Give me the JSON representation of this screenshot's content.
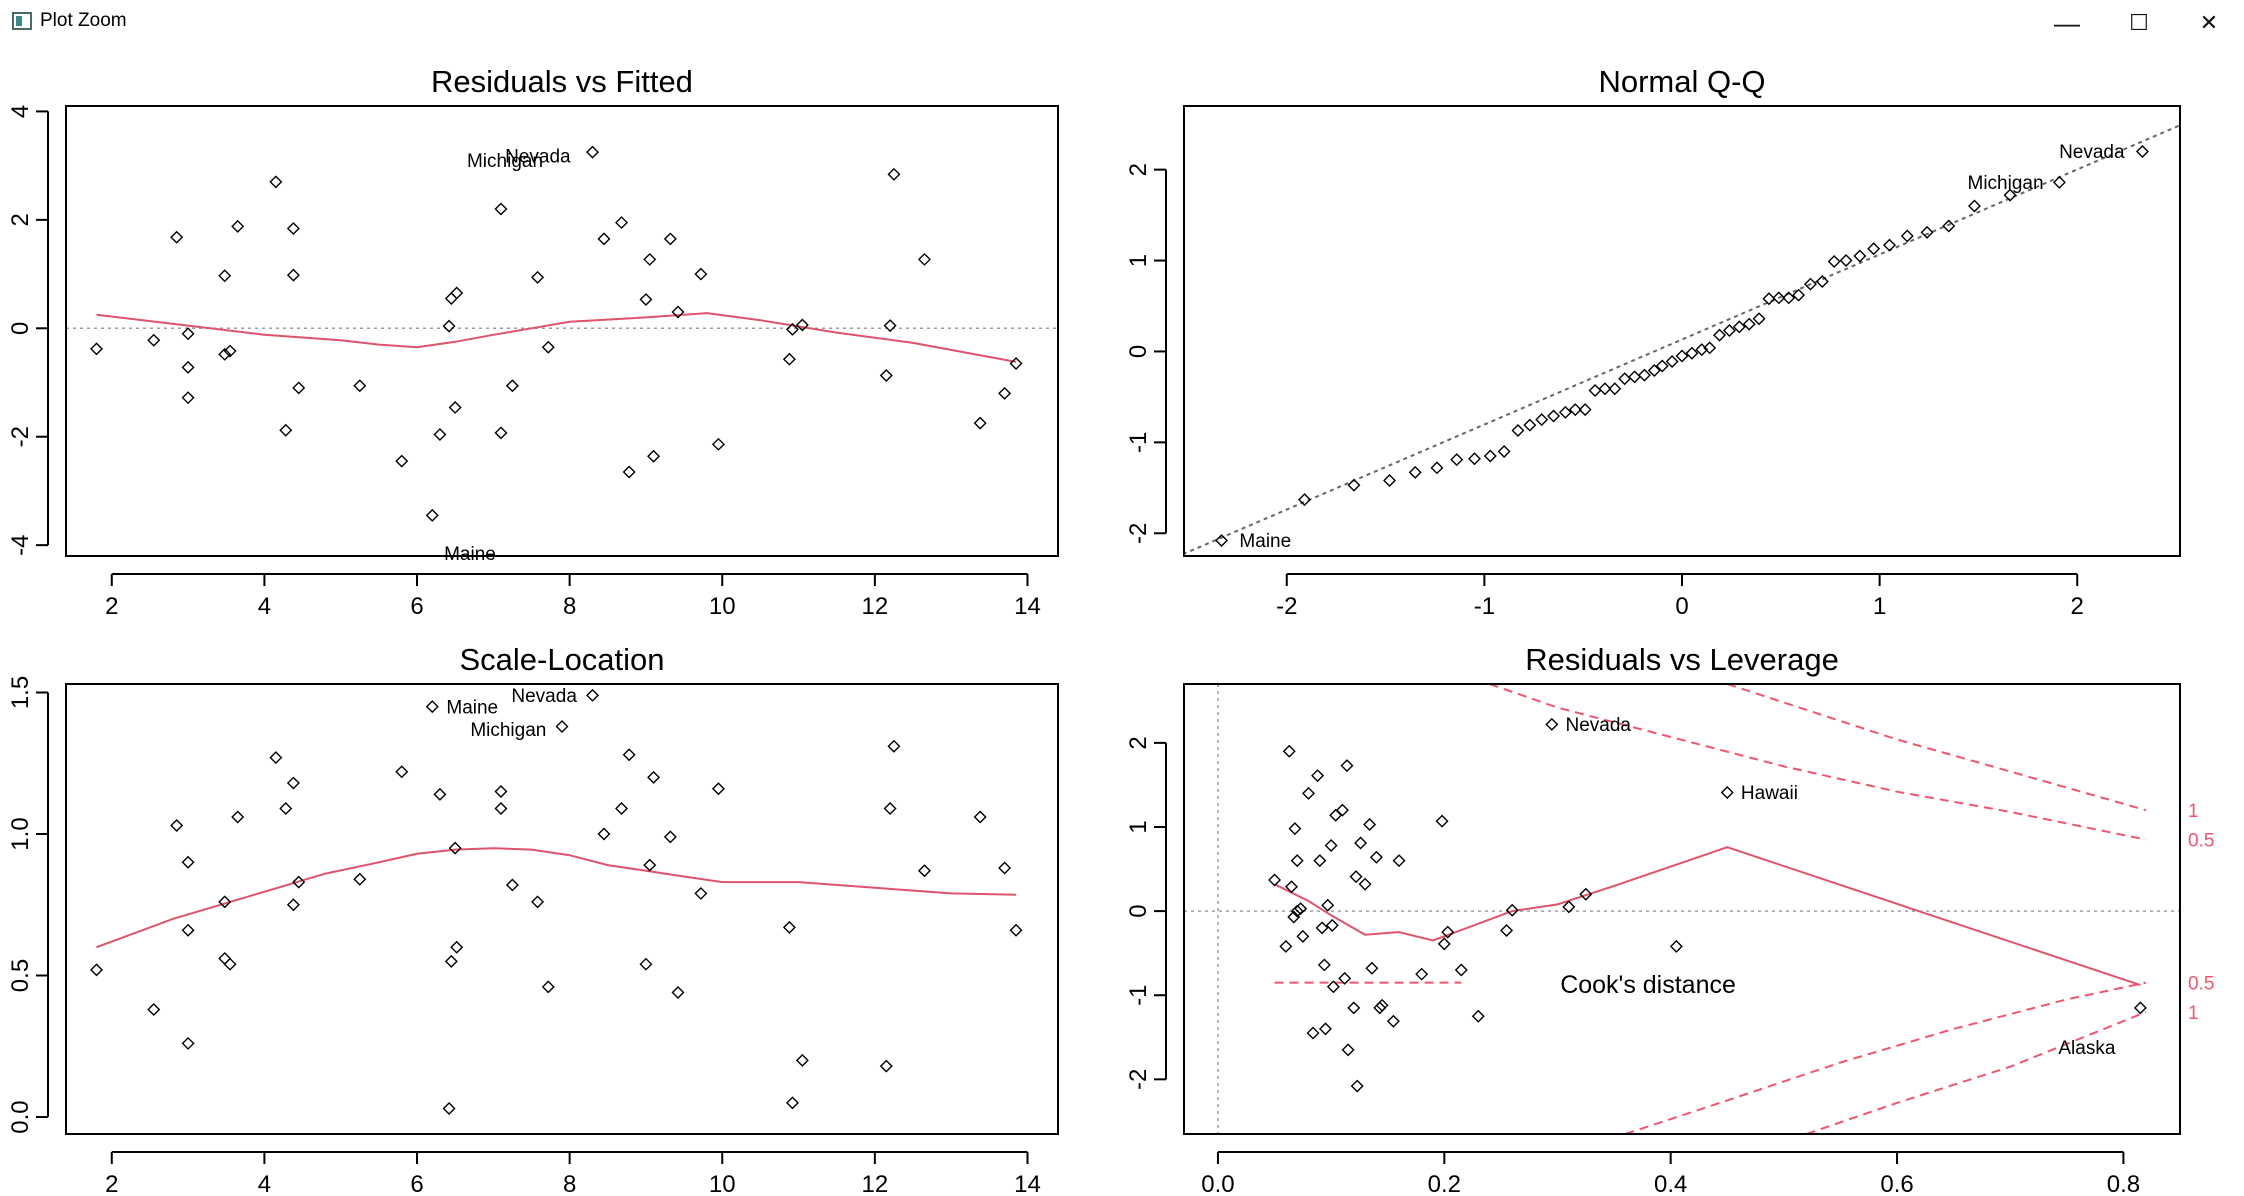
{
  "window": {
    "title": "Plot Zoom",
    "minimize_glyph": "—",
    "maximize_glyph": "☐",
    "close_glyph": "✕"
  },
  "colors": {
    "smoother": "#DF536B",
    "cook": "#F2556F",
    "ref": "#9E9E9E"
  },
  "chart_data": [
    {
      "type": "scatter",
      "title": "Residuals vs Fitted",
      "xlim": [
        1.4,
        14.4
      ],
      "ylim": [
        -4.2,
        4.1
      ],
      "xticks": [
        2,
        4,
        6,
        8,
        10,
        12,
        14
      ],
      "yticks": [
        -4,
        -2,
        0,
        2,
        4
      ],
      "ref_lines": {
        "h": [
          0
        ]
      },
      "points": [
        [
          1.8,
          -0.38
        ],
        [
          2.55,
          -0.22
        ],
        [
          2.85,
          1.68
        ],
        [
          3.0,
          -0.1
        ],
        [
          3.0,
          -0.72
        ],
        [
          3.0,
          -1.28
        ],
        [
          3.48,
          0.97
        ],
        [
          3.48,
          -0.48
        ],
        [
          3.55,
          -0.42
        ],
        [
          3.65,
          1.88
        ],
        [
          4.15,
          2.7
        ],
        [
          4.28,
          -1.88
        ],
        [
          4.38,
          1.84
        ],
        [
          4.38,
          0.98
        ],
        [
          4.45,
          -1.1
        ],
        [
          5.25,
          -1.06
        ],
        [
          5.8,
          -2.45
        ],
        [
          6.2,
          -3.45
        ],
        [
          6.3,
          -1.96
        ],
        [
          6.42,
          0.04
        ],
        [
          6.45,
          0.55
        ],
        [
          6.5,
          -1.46
        ],
        [
          6.52,
          0.65
        ],
        [
          7.1,
          2.2
        ],
        [
          7.1,
          -1.93
        ],
        [
          7.25,
          -1.06
        ],
        [
          7.58,
          0.94
        ],
        [
          7.72,
          -0.35
        ],
        [
          8.45,
          1.65
        ],
        [
          8.68,
          1.95
        ],
        [
          8.78,
          -2.65
        ],
        [
          9.0,
          0.53
        ],
        [
          9.05,
          1.27
        ],
        [
          9.1,
          -2.36
        ],
        [
          9.32,
          1.65
        ],
        [
          9.42,
          0.3
        ],
        [
          9.72,
          1.0
        ],
        [
          9.95,
          -2.14
        ],
        [
          10.88,
          -0.57
        ],
        [
          10.92,
          -0.02
        ],
        [
          11.05,
          0.06
        ],
        [
          12.15,
          -0.87
        ],
        [
          12.2,
          0.05
        ],
        [
          12.25,
          2.84
        ],
        [
          12.65,
          1.27
        ],
        [
          13.38,
          -1.75
        ],
        [
          13.7,
          -1.2
        ],
        [
          13.85,
          -0.65
        ],
        [
          8.3,
          3.25
        ]
      ],
      "smoother": [
        [
          1.8,
          0.25
        ],
        [
          3.0,
          0.05
        ],
        [
          4.0,
          -0.12
        ],
        [
          5.0,
          -0.22
        ],
        [
          5.5,
          -0.3
        ],
        [
          6.0,
          -0.35
        ],
        [
          6.5,
          -0.25
        ],
        [
          7.0,
          -0.12
        ],
        [
          7.5,
          0.0
        ],
        [
          8.0,
          0.12
        ],
        [
          9.0,
          0.2
        ],
        [
          9.8,
          0.28
        ],
        [
          10.5,
          0.15
        ],
        [
          11.5,
          -0.08
        ],
        [
          12.5,
          -0.27
        ],
        [
          13.85,
          -0.62
        ]
      ],
      "labels": [
        {
          "text": "Michigan",
          "x": 6.55,
          "y": 3.1,
          "anchor": "start"
        },
        {
          "text": "Nevada",
          "x": 7.05,
          "y": 3.18,
          "anchor": "start"
        },
        {
          "text": "Maine",
          "x": 6.25,
          "y": -4.15,
          "anchor": "start"
        }
      ]
    },
    {
      "type": "scatter",
      "title": "Normal Q-Q",
      "xlim": [
        -2.52,
        2.52
      ],
      "ylim": [
        -2.25,
        2.7
      ],
      "xticks": [
        -2,
        -1,
        0,
        1,
        2
      ],
      "yticks": [
        -2,
        -1,
        0,
        1,
        2
      ],
      "ref_lines": {
        "qq": [
          [
            -2.6,
            -2.3
          ],
          [
            2.8,
            2.75
          ]
        ]
      },
      "points": [
        [
          -2.33,
          -2.08
        ],
        [
          -1.91,
          -1.63
        ],
        [
          -1.66,
          -1.47
        ],
        [
          -1.48,
          -1.42
        ],
        [
          -1.35,
          -1.33
        ],
        [
          -1.24,
          -1.28
        ],
        [
          -1.14,
          -1.19
        ],
        [
          -1.05,
          -1.18
        ],
        [
          -0.97,
          -1.15
        ],
        [
          -0.9,
          -1.1
        ],
        [
          -0.83,
          -0.87
        ],
        [
          -0.77,
          -0.81
        ],
        [
          -0.71,
          -0.75
        ],
        [
          -0.65,
          -0.71
        ],
        [
          -0.59,
          -0.67
        ],
        [
          -0.54,
          -0.64
        ],
        [
          -0.49,
          -0.64
        ],
        [
          -0.44,
          -0.43
        ],
        [
          -0.39,
          -0.41
        ],
        [
          -0.34,
          -0.41
        ],
        [
          -0.29,
          -0.3
        ],
        [
          -0.24,
          -0.28
        ],
        [
          -0.19,
          -0.26
        ],
        [
          -0.14,
          -0.21
        ],
        [
          -0.1,
          -0.16
        ],
        [
          -0.05,
          -0.11
        ],
        [
          0.0,
          -0.05
        ],
        [
          0.05,
          -0.02
        ],
        [
          0.1,
          0.02
        ],
        [
          0.14,
          0.04
        ],
        [
          0.19,
          0.18
        ],
        [
          0.24,
          0.23
        ],
        [
          0.29,
          0.27
        ],
        [
          0.34,
          0.3
        ],
        [
          0.39,
          0.36
        ],
        [
          0.44,
          0.58
        ],
        [
          0.49,
          0.59
        ],
        [
          0.54,
          0.59
        ],
        [
          0.59,
          0.62
        ],
        [
          0.65,
          0.74
        ],
        [
          0.71,
          0.77
        ],
        [
          0.77,
          0.99
        ],
        [
          0.83,
          1.0
        ],
        [
          0.9,
          1.05
        ],
        [
          0.97,
          1.13
        ],
        [
          1.05,
          1.17
        ],
        [
          1.14,
          1.27
        ],
        [
          1.24,
          1.31
        ],
        [
          1.35,
          1.38
        ],
        [
          1.48,
          1.6
        ],
        [
          1.66,
          1.72
        ],
        [
          1.91,
          1.86
        ],
        [
          2.33,
          2.2
        ]
      ],
      "labels": [
        {
          "text": "Nevada",
          "x": 2.28,
          "y": 2.2,
          "anchor": "end"
        },
        {
          "text": "Michigan",
          "x": 1.87,
          "y": 1.86,
          "anchor": "end"
        },
        {
          "text": "Maine",
          "x": -2.28,
          "y": -2.08,
          "anchor": "start"
        }
      ]
    },
    {
      "type": "scatter",
      "title": "Scale-Location",
      "xlim": [
        1.4,
        14.4
      ],
      "ylim": [
        -0.06,
        1.53
      ],
      "xticks": [
        2,
        4,
        6,
        8,
        10,
        12,
        14
      ],
      "yticks": [
        0.0,
        0.5,
        1.0,
        1.5
      ],
      "ytick_labels": [
        "0.0",
        "0.5",
        "1.0",
        "1.5"
      ],
      "points": [
        [
          1.8,
          0.52
        ],
        [
          2.55,
          0.38
        ],
        [
          2.85,
          1.03
        ],
        [
          3.0,
          0.9
        ],
        [
          3.0,
          0.66
        ],
        [
          3.0,
          0.26
        ],
        [
          3.48,
          0.76
        ],
        [
          3.48,
          0.56
        ],
        [
          3.55,
          0.54
        ],
        [
          3.65,
          1.06
        ],
        [
          4.15,
          1.27
        ],
        [
          4.28,
          1.09
        ],
        [
          4.38,
          1.18
        ],
        [
          4.38,
          0.75
        ],
        [
          4.45,
          0.83
        ],
        [
          5.25,
          0.84
        ],
        [
          5.8,
          1.22
        ],
        [
          6.2,
          1.45
        ],
        [
          6.3,
          1.14
        ],
        [
          6.42,
          0.03
        ],
        [
          6.45,
          0.55
        ],
        [
          6.5,
          0.95
        ],
        [
          6.52,
          0.6
        ],
        [
          7.1,
          1.15
        ],
        [
          7.1,
          1.09
        ],
        [
          7.25,
          0.82
        ],
        [
          7.58,
          0.76
        ],
        [
          7.72,
          0.46
        ],
        [
          7.9,
          1.38
        ],
        [
          8.45,
          1.0
        ],
        [
          8.68,
          1.09
        ],
        [
          8.78,
          1.28
        ],
        [
          9.0,
          0.54
        ],
        [
          9.05,
          0.89
        ],
        [
          9.1,
          1.2
        ],
        [
          9.32,
          0.99
        ],
        [
          9.42,
          0.44
        ],
        [
          9.72,
          0.79
        ],
        [
          9.95,
          1.16
        ],
        [
          10.88,
          0.67
        ],
        [
          10.92,
          0.05
        ],
        [
          11.05,
          0.2
        ],
        [
          12.15,
          0.18
        ],
        [
          12.2,
          1.09
        ],
        [
          12.25,
          1.31
        ],
        [
          12.65,
          0.87
        ],
        [
          13.38,
          1.06
        ],
        [
          13.7,
          0.88
        ],
        [
          13.85,
          0.66
        ],
        [
          8.3,
          1.49
        ]
      ],
      "smoother": [
        [
          1.8,
          0.6
        ],
        [
          2.8,
          0.7
        ],
        [
          3.8,
          0.78
        ],
        [
          4.8,
          0.86
        ],
        [
          5.5,
          0.9
        ],
        [
          6.0,
          0.93
        ],
        [
          6.5,
          0.945
        ],
        [
          7.0,
          0.95
        ],
        [
          7.5,
          0.945
        ],
        [
          8.0,
          0.925
        ],
        [
          8.5,
          0.89
        ],
        [
          9.0,
          0.87
        ],
        [
          9.5,
          0.85
        ],
        [
          10.0,
          0.83
        ],
        [
          11.0,
          0.83
        ],
        [
          12.0,
          0.81
        ],
        [
          13.0,
          0.79
        ],
        [
          13.85,
          0.785
        ]
      ],
      "labels": [
        {
          "text": "Maine",
          "x": 6.28,
          "y": 1.45,
          "anchor": "start"
        },
        {
          "text": "Nevada",
          "x": 8.2,
          "y": 1.49,
          "anchor": "end"
        },
        {
          "text": "Michigan",
          "x": 7.8,
          "y": 1.37,
          "anchor": "end"
        }
      ]
    },
    {
      "type": "scatter",
      "title": "Residuals vs Leverage",
      "xlim": [
        -0.03,
        0.85
      ],
      "ylim": [
        -2.65,
        2.7
      ],
      "xticks": [
        0.0,
        0.2,
        0.4,
        0.6,
        0.8
      ],
      "xtick_labels": [
        "0.0",
        "0.2",
        "0.4",
        "0.6",
        "0.8"
      ],
      "yticks": [
        -2,
        -1,
        0,
        1,
        2
      ],
      "ref_lines": {
        "h": [
          0
        ],
        "v": [
          0
        ]
      },
      "points": [
        [
          0.05,
          0.37
        ],
        [
          0.06,
          -0.42
        ],
        [
          0.063,
          1.9
        ],
        [
          0.065,
          0.29
        ],
        [
          0.067,
          -0.07
        ],
        [
          0.068,
          0.98
        ],
        [
          0.07,
          0.0
        ],
        [
          0.07,
          0.6
        ],
        [
          0.073,
          0.03
        ],
        [
          0.075,
          -0.3
        ],
        [
          0.08,
          1.4
        ],
        [
          0.084,
          -1.45
        ],
        [
          0.088,
          1.61
        ],
        [
          0.09,
          0.6
        ],
        [
          0.092,
          -0.2
        ],
        [
          0.094,
          -0.64
        ],
        [
          0.095,
          -1.4
        ],
        [
          0.097,
          0.07
        ],
        [
          0.1,
          0.78
        ],
        [
          0.101,
          -0.17
        ],
        [
          0.102,
          -0.9
        ],
        [
          0.104,
          1.14
        ],
        [
          0.11,
          1.2
        ],
        [
          0.112,
          -0.8
        ],
        [
          0.114,
          1.73
        ],
        [
          0.115,
          -1.65
        ],
        [
          0.12,
          -1.15
        ],
        [
          0.122,
          0.41
        ],
        [
          0.123,
          -2.08
        ],
        [
          0.126,
          0.81
        ],
        [
          0.13,
          0.32
        ],
        [
          0.134,
          1.03
        ],
        [
          0.136,
          -0.68
        ],
        [
          0.14,
          0.64
        ],
        [
          0.143,
          -1.15
        ],
        [
          0.145,
          -1.12
        ],
        [
          0.155,
          -1.31
        ],
        [
          0.16,
          0.6
        ],
        [
          0.18,
          -0.75
        ],
        [
          0.198,
          1.07
        ],
        [
          0.2,
          -0.39
        ],
        [
          0.203,
          -0.25
        ],
        [
          0.215,
          -0.7
        ],
        [
          0.23,
          -1.25
        ],
        [
          0.255,
          -0.23
        ],
        [
          0.26,
          0.01
        ],
        [
          0.31,
          0.05
        ],
        [
          0.325,
          0.2
        ],
        [
          0.405,
          -0.42
        ],
        [
          0.295,
          2.22
        ],
        [
          0.45,
          1.41
        ],
        [
          0.815,
          -1.15
        ]
      ],
      "smoother": [
        [
          0.05,
          0.32
        ],
        [
          0.08,
          0.12
        ],
        [
          0.1,
          -0.05
        ],
        [
          0.13,
          -0.28
        ],
        [
          0.16,
          -0.25
        ],
        [
          0.19,
          -0.35
        ],
        [
          0.22,
          -0.2
        ],
        [
          0.26,
          0.0
        ],
        [
          0.3,
          0.08
        ],
        [
          0.35,
          0.3
        ],
        [
          0.45,
          0.76
        ],
        [
          0.815,
          -0.88
        ]
      ],
      "cooks_segment": [
        [
          0.05,
          -0.85
        ],
        [
          0.215,
          -0.85
        ]
      ],
      "cooks_curves": [
        {
          "level": 1,
          "label": "1",
          "upper": [
            [
              0.45,
              2.7
            ],
            [
              0.6,
              2.04
            ],
            [
              0.7,
              1.66
            ],
            [
              0.82,
              1.2
            ]
          ],
          "lower": [
            [
              0.52,
              -2.65
            ],
            [
              0.6,
              -2.28
            ],
            [
              0.7,
              -1.85
            ],
            [
              0.82,
              -1.2
            ]
          ]
        },
        {
          "level": 0.5,
          "label": "0.5",
          "upper": [
            [
              0.24,
              2.7
            ],
            [
              0.3,
              2.42
            ],
            [
              0.4,
              2.07
            ],
            [
              0.5,
              1.72
            ],
            [
              0.6,
              1.42
            ],
            [
              0.7,
              1.18
            ],
            [
              0.82,
              0.85
            ]
          ],
          "lower": [
            [
              0.36,
              -2.65
            ],
            [
              0.45,
              -2.25
            ],
            [
              0.55,
              -1.8
            ],
            [
              0.65,
              -1.4
            ],
            [
              0.75,
              -1.05
            ],
            [
              0.82,
              -0.85
            ]
          ]
        }
      ],
      "labels": [
        {
          "text": "Nevada",
          "x": 0.3,
          "y": 2.22,
          "anchor": "start"
        },
        {
          "text": "Hawaii",
          "x": 0.455,
          "y": 1.41,
          "anchor": "start"
        },
        {
          "text": "Alaska",
          "x": 0.8,
          "y": -1.62,
          "anchor": "end"
        },
        {
          "text": "Cook's distance",
          "x": 0.38,
          "y": -0.87,
          "anchor": "middle",
          "big": true
        }
      ]
    }
  ]
}
